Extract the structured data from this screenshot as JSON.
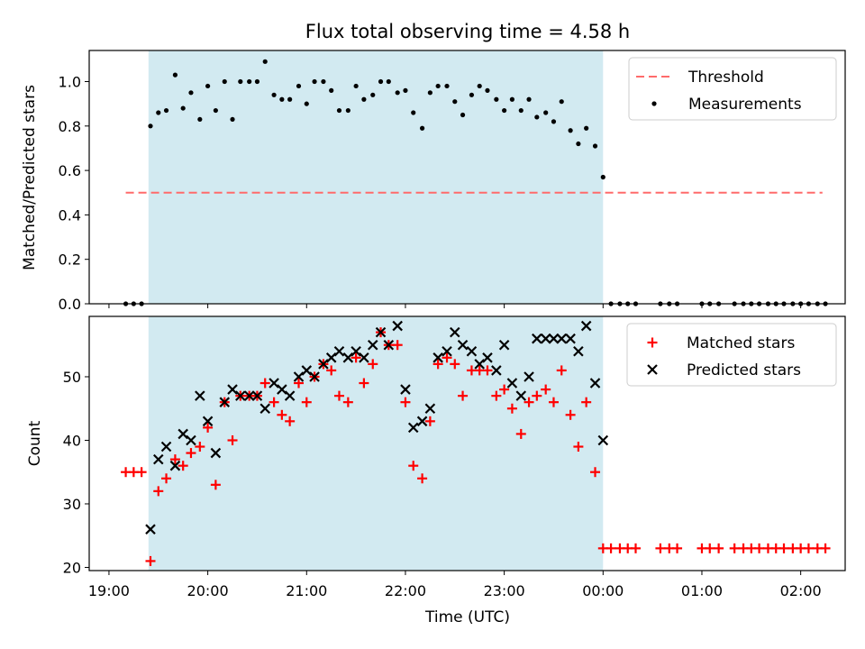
{
  "chart_data": {
    "title": "Flux total observing time = 4.58 h",
    "shaded_span": {
      "x_start": 19.4,
      "x_end": 24.0,
      "color": "#add8e6"
    },
    "x_axis": {
      "label": "Time (UTC)",
      "lim": [
        18.8,
        26.45
      ],
      "ticks": [
        {
          "value": 19,
          "label": "19:00"
        },
        {
          "value": 20,
          "label": "20:00"
        },
        {
          "value": 21,
          "label": "21:00"
        },
        {
          "value": 22,
          "label": "22:00"
        },
        {
          "value": 23,
          "label": "23:00"
        },
        {
          "value": 24,
          "label": "00:00"
        },
        {
          "value": 25,
          "label": "01:00"
        },
        {
          "value": 26,
          "label": "02:00"
        }
      ]
    },
    "top": {
      "type": "scatter",
      "ylabel": "Matched/Predicted stars",
      "ylim": [
        0,
        1.14
      ],
      "yticks": [
        "0.0",
        "0.2",
        "0.4",
        "0.6",
        "0.8",
        "1.0"
      ],
      "threshold": {
        "name": "Threshold",
        "value": 0.5,
        "x_range": [
          19.17,
          26.22
        ],
        "color": "#ff6b6b"
      },
      "legend": [
        {
          "name": "Threshold",
          "kind": "dashed-line",
          "color": "#ff6b6b"
        },
        {
          "name": "Measurements",
          "kind": "dot",
          "color": "#000000"
        }
      ],
      "series": {
        "name": "Measurements",
        "color": "#000000",
        "points": [
          [
            19.17,
            0
          ],
          [
            19.25,
            0
          ],
          [
            19.33,
            0
          ],
          [
            19.42,
            0.8
          ],
          [
            19.5,
            0.86
          ],
          [
            19.58,
            0.87
          ],
          [
            19.67,
            1.03
          ],
          [
            19.75,
            0.88
          ],
          [
            19.83,
            0.95
          ],
          [
            19.92,
            0.83
          ],
          [
            20.0,
            0.98
          ],
          [
            20.08,
            0.87
          ],
          [
            20.17,
            1.0
          ],
          [
            20.25,
            0.83
          ],
          [
            20.33,
            1.0
          ],
          [
            20.42,
            1.0
          ],
          [
            20.5,
            1.0
          ],
          [
            20.58,
            1.09
          ],
          [
            20.67,
            0.94
          ],
          [
            20.75,
            0.92
          ],
          [
            20.83,
            0.92
          ],
          [
            20.92,
            0.98
          ],
          [
            21.0,
            0.9
          ],
          [
            21.08,
            1.0
          ],
          [
            21.17,
            1.0
          ],
          [
            21.25,
            0.96
          ],
          [
            21.33,
            0.87
          ],
          [
            21.42,
            0.87
          ],
          [
            21.5,
            0.98
          ],
          [
            21.58,
            0.92
          ],
          [
            21.67,
            0.94
          ],
          [
            21.75,
            1.0
          ],
          [
            21.83,
            1.0
          ],
          [
            21.92,
            0.95
          ],
          [
            22.0,
            0.96
          ],
          [
            22.08,
            0.86
          ],
          [
            22.17,
            0.79
          ],
          [
            22.25,
            0.95
          ],
          [
            22.33,
            0.98
          ],
          [
            22.42,
            0.98
          ],
          [
            22.5,
            0.91
          ],
          [
            22.58,
            0.85
          ],
          [
            22.67,
            0.94
          ],
          [
            22.75,
            0.98
          ],
          [
            22.83,
            0.96
          ],
          [
            22.92,
            0.92
          ],
          [
            23.0,
            0.87
          ],
          [
            23.08,
            0.92
          ],
          [
            23.17,
            0.87
          ],
          [
            23.25,
            0.92
          ],
          [
            23.33,
            0.84
          ],
          [
            23.42,
            0.86
          ],
          [
            23.5,
            0.82
          ],
          [
            23.58,
            0.91
          ],
          [
            23.67,
            0.78
          ],
          [
            23.75,
            0.72
          ],
          [
            23.83,
            0.79
          ],
          [
            23.92,
            0.71
          ],
          [
            24.0,
            0.57
          ],
          [
            24.08,
            0
          ],
          [
            24.17,
            0
          ],
          [
            24.25,
            0
          ],
          [
            24.33,
            0
          ],
          [
            24.58,
            0
          ],
          [
            24.67,
            0
          ],
          [
            24.75,
            0
          ],
          [
            25.0,
            0
          ],
          [
            25.08,
            0
          ],
          [
            25.17,
            0
          ],
          [
            25.33,
            0
          ],
          [
            25.42,
            0
          ],
          [
            25.5,
            0
          ],
          [
            25.58,
            0
          ],
          [
            25.67,
            0
          ],
          [
            25.75,
            0
          ],
          [
            25.83,
            0
          ],
          [
            25.92,
            0
          ],
          [
            26.0,
            0
          ],
          [
            26.08,
            0
          ],
          [
            26.17,
            0
          ],
          [
            26.25,
            0
          ]
        ]
      }
    },
    "bottom": {
      "type": "scatter",
      "ylabel": "Count",
      "ylim": [
        19.5,
        59.5
      ],
      "yticks": [
        "20",
        "30",
        "40",
        "50"
      ],
      "legend": [
        {
          "name": "Matched stars",
          "kind": "plus",
          "color": "#ff0000"
        },
        {
          "name": "Predicted stars",
          "kind": "x",
          "color": "#000000"
        }
      ],
      "series": [
        {
          "name": "Matched stars",
          "marker": "plus",
          "color": "#ff0000",
          "points": [
            [
              19.17,
              35
            ],
            [
              19.25,
              35
            ],
            [
              19.33,
              35
            ],
            [
              19.42,
              21
            ],
            [
              19.5,
              32
            ],
            [
              19.58,
              34
            ],
            [
              19.67,
              37
            ],
            [
              19.75,
              36
            ],
            [
              19.83,
              38
            ],
            [
              19.92,
              39
            ],
            [
              20.0,
              42
            ],
            [
              20.08,
              33
            ],
            [
              20.17,
              46
            ],
            [
              20.25,
              40
            ],
            [
              20.33,
              47
            ],
            [
              20.42,
              47
            ],
            [
              20.5,
              47
            ],
            [
              20.58,
              49
            ],
            [
              20.67,
              46
            ],
            [
              20.75,
              44
            ],
            [
              20.83,
              43
            ],
            [
              20.92,
              49
            ],
            [
              21.0,
              46
            ],
            [
              21.08,
              50
            ],
            [
              21.17,
              52
            ],
            [
              21.25,
              51
            ],
            [
              21.33,
              47
            ],
            [
              21.42,
              46
            ],
            [
              21.5,
              53
            ],
            [
              21.58,
              49
            ],
            [
              21.67,
              52
            ],
            [
              21.75,
              57
            ],
            [
              21.83,
              55
            ],
            [
              21.92,
              55
            ],
            [
              22.0,
              46
            ],
            [
              22.08,
              36
            ],
            [
              22.17,
              34
            ],
            [
              22.25,
              43
            ],
            [
              22.33,
              52
            ],
            [
              22.42,
              53
            ],
            [
              22.5,
              52
            ],
            [
              22.58,
              47
            ],
            [
              22.67,
              51
            ],
            [
              22.75,
              51
            ],
            [
              22.83,
              51
            ],
            [
              22.92,
              47
            ],
            [
              23.0,
              48
            ],
            [
              23.08,
              45
            ],
            [
              23.17,
              41
            ],
            [
              23.25,
              46
            ],
            [
              23.33,
              47
            ],
            [
              23.42,
              48
            ],
            [
              23.5,
              46
            ],
            [
              23.58,
              51
            ],
            [
              23.67,
              44
            ],
            [
              23.75,
              39
            ],
            [
              23.83,
              46
            ],
            [
              23.92,
              35
            ],
            [
              24.0,
              23
            ],
            [
              24.08,
              23
            ],
            [
              24.17,
              23
            ],
            [
              24.25,
              23
            ],
            [
              24.33,
              23
            ],
            [
              24.58,
              23
            ],
            [
              24.67,
              23
            ],
            [
              24.75,
              23
            ],
            [
              25.0,
              23
            ],
            [
              25.08,
              23
            ],
            [
              25.17,
              23
            ],
            [
              25.33,
              23
            ],
            [
              25.42,
              23
            ],
            [
              25.5,
              23
            ],
            [
              25.58,
              23
            ],
            [
              25.67,
              23
            ],
            [
              25.75,
              23
            ],
            [
              25.83,
              23
            ],
            [
              25.92,
              23
            ],
            [
              26.0,
              23
            ],
            [
              26.08,
              23
            ],
            [
              26.17,
              23
            ],
            [
              26.25,
              23
            ]
          ]
        },
        {
          "name": "Predicted stars",
          "marker": "x",
          "color": "#000000",
          "points": [
            [
              19.42,
              26
            ],
            [
              19.5,
              37
            ],
            [
              19.58,
              39
            ],
            [
              19.67,
              36
            ],
            [
              19.75,
              41
            ],
            [
              19.83,
              40
            ],
            [
              19.92,
              47
            ],
            [
              20.0,
              43
            ],
            [
              20.08,
              38
            ],
            [
              20.17,
              46
            ],
            [
              20.25,
              48
            ],
            [
              20.33,
              47
            ],
            [
              20.42,
              47
            ],
            [
              20.5,
              47
            ],
            [
              20.58,
              45
            ],
            [
              20.67,
              49
            ],
            [
              20.75,
              48
            ],
            [
              20.83,
              47
            ],
            [
              20.92,
              50
            ],
            [
              21.0,
              51
            ],
            [
              21.08,
              50
            ],
            [
              21.17,
              52
            ],
            [
              21.25,
              53
            ],
            [
              21.33,
              54
            ],
            [
              21.42,
              53
            ],
            [
              21.5,
              54
            ],
            [
              21.58,
              53
            ],
            [
              21.67,
              55
            ],
            [
              21.75,
              57
            ],
            [
              21.83,
              55
            ],
            [
              21.92,
              58
            ],
            [
              22.0,
              48
            ],
            [
              22.08,
              42
            ],
            [
              22.17,
              43
            ],
            [
              22.25,
              45
            ],
            [
              22.33,
              53
            ],
            [
              22.42,
              54
            ],
            [
              22.5,
              57
            ],
            [
              22.58,
              55
            ],
            [
              22.67,
              54
            ],
            [
              22.75,
              52
            ],
            [
              22.83,
              53
            ],
            [
              22.92,
              51
            ],
            [
              23.0,
              55
            ],
            [
              23.08,
              49
            ],
            [
              23.17,
              47
            ],
            [
              23.25,
              50
            ],
            [
              23.33,
              56
            ],
            [
              23.42,
              56
            ],
            [
              23.5,
              56
            ],
            [
              23.58,
              56
            ],
            [
              23.67,
              56
            ],
            [
              23.75,
              54
            ],
            [
              23.83,
              58
            ],
            [
              23.92,
              49
            ],
            [
              24.0,
              40
            ]
          ]
        }
      ]
    }
  }
}
